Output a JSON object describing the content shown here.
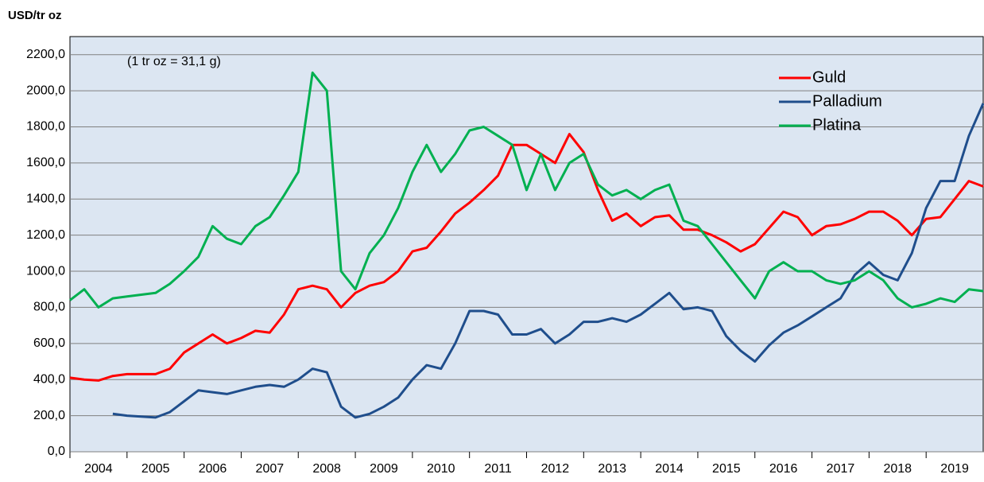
{
  "chart_data": {
    "type": "line",
    "y_label": "USD/tr oz",
    "annotation": "(1 tr oz = 31,1 g)",
    "x": [
      2004,
      2004.25,
      2004.5,
      2004.75,
      2005,
      2005.25,
      2005.5,
      2005.75,
      2006,
      2006.25,
      2006.5,
      2006.75,
      2007,
      2007.25,
      2007.5,
      2007.75,
      2008,
      2008.25,
      2008.5,
      2008.75,
      2009,
      2009.25,
      2009.5,
      2009.75,
      2010,
      2010.25,
      2010.5,
      2010.75,
      2011,
      2011.25,
      2011.5,
      2011.75,
      2012,
      2012.25,
      2012.5,
      2012.75,
      2013,
      2013.25,
      2013.5,
      2013.75,
      2014,
      2014.25,
      2014.5,
      2014.75,
      2015,
      2015.25,
      2015.5,
      2015.75,
      2016,
      2016.25,
      2016.5,
      2016.75,
      2017,
      2017.25,
      2017.5,
      2017.75,
      2018,
      2018.25,
      2018.5,
      2018.75,
      2019,
      2019.25,
      2019.5,
      2019.75,
      2020
    ],
    "series": [
      {
        "name": "Guld",
        "color": "#ff0000",
        "values": [
          410,
          400,
          395,
          420,
          430,
          430,
          430,
          460,
          550,
          600,
          650,
          600,
          630,
          670,
          660,
          760,
          900,
          920,
          900,
          800,
          880,
          920,
          940,
          1000,
          1110,
          1130,
          1220,
          1320,
          1380,
          1450,
          1530,
          1700,
          1700,
          1650,
          1600,
          1760,
          1660,
          1450,
          1280,
          1320,
          1250,
          1300,
          1310,
          1230,
          1230,
          1200,
          1160,
          1110,
          1150,
          1240,
          1330,
          1300,
          1200,
          1250,
          1260,
          1290,
          1330,
          1330,
          1280,
          1200,
          1290,
          1300,
          1400,
          1500,
          1470
        ]
      },
      {
        "name": "Palladium",
        "color": "#1f4e8c",
        "values": [
          null,
          null,
          null,
          210,
          200,
          195,
          190,
          220,
          280,
          340,
          330,
          320,
          340,
          360,
          370,
          360,
          400,
          460,
          440,
          250,
          190,
          210,
          250,
          300,
          400,
          480,
          460,
          600,
          780,
          780,
          760,
          650,
          650,
          680,
          600,
          650,
          720,
          720,
          740,
          720,
          760,
          820,
          880,
          790,
          800,
          780,
          640,
          560,
          500,
          590,
          660,
          700,
          750,
          800,
          850,
          980,
          1050,
          980,
          950,
          1100,
          1350,
          1500,
          1500,
          1750,
          1930
        ]
      },
      {
        "name": "Platina",
        "color": "#00b050",
        "values": [
          840,
          900,
          800,
          850,
          860,
          870,
          880,
          930,
          1000,
          1080,
          1250,
          1180,
          1150,
          1250,
          1300,
          1420,
          1550,
          2100,
          2000,
          1000,
          900,
          1100,
          1200,
          1350,
          1550,
          1700,
          1550,
          1650,
          1780,
          1800,
          1750,
          1700,
          1450,
          1650,
          1450,
          1600,
          1650,
          1480,
          1420,
          1450,
          1400,
          1450,
          1480,
          1280,
          1250,
          1150,
          1050,
          950,
          850,
          1000,
          1050,
          1000,
          1000,
          950,
          930,
          950,
          1000,
          950,
          850,
          800,
          820,
          850,
          830,
          900,
          890
        ]
      }
    ],
    "xlim": [
      2004,
      2020
    ],
    "xticks": [
      2004,
      2005,
      2006,
      2007,
      2008,
      2009,
      2010,
      2011,
      2012,
      2013,
      2014,
      2015,
      2016,
      2017,
      2018,
      2019
    ],
    "ylim": [
      0,
      2300
    ],
    "yticks": [
      {
        "value": 0,
        "label": "0,0"
      },
      {
        "value": 200,
        "label": "200,0"
      },
      {
        "value": 400,
        "label": "400,0"
      },
      {
        "value": 600,
        "label": "600,0"
      },
      {
        "value": 800,
        "label": "800,0"
      },
      {
        "value": 1000,
        "label": "1000,0"
      },
      {
        "value": 1200,
        "label": "1200,0"
      },
      {
        "value": 1400,
        "label": "1400,0"
      },
      {
        "value": 1600,
        "label": "1600,0"
      },
      {
        "value": 1800,
        "label": "1800,0"
      },
      {
        "value": 2000,
        "label": "2000,0"
      },
      {
        "value": 2200,
        "label": "2200,0"
      }
    ],
    "grid": true,
    "legend": "upper right"
  }
}
